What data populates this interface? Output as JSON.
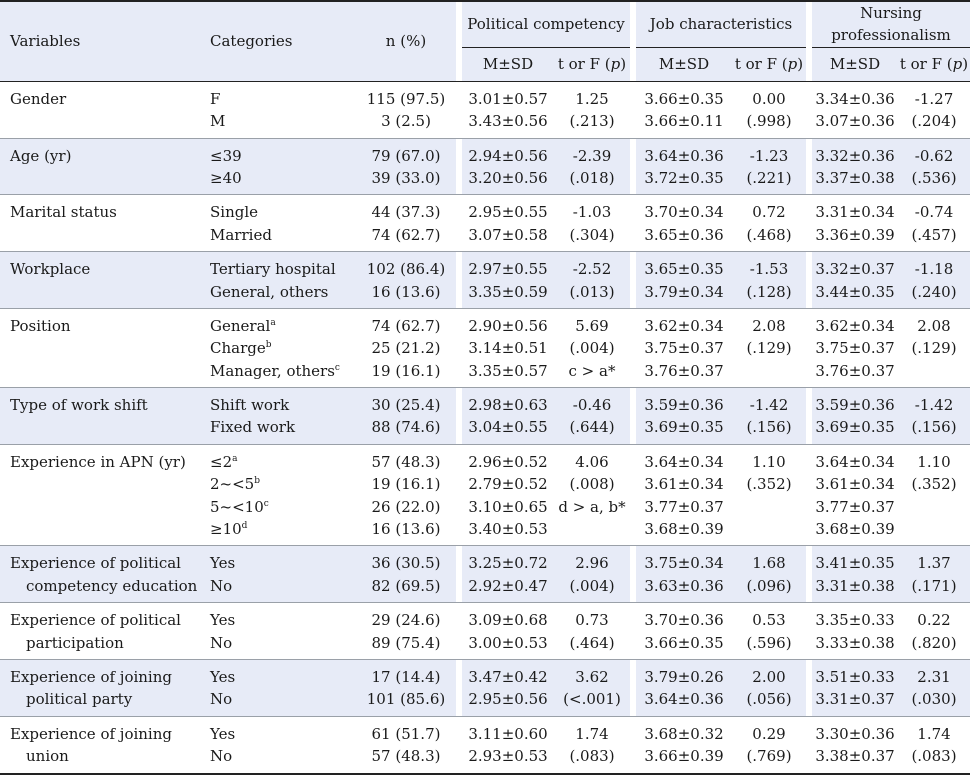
{
  "header": {
    "variables": "Variables",
    "categories": "Categories",
    "n_pct": "n (%)",
    "group1": "Political competency",
    "group2": "Job characteristics",
    "group3_line1": "Nursing",
    "group3_line2": "professionalism",
    "msd": "M±SD",
    "t_or_f": "t or F (p)"
  },
  "rows": [
    {
      "variable": [
        "Gender"
      ],
      "categories": [
        [
          "F",
          ""
        ],
        [
          "M",
          ""
        ]
      ],
      "n": [
        "115 (97.5)",
        "3 (2.5)"
      ],
      "pc_msd": [
        "3.01±0.57",
        "3.43±0.56"
      ],
      "pc_t": [
        "1.25",
        "(.213)"
      ],
      "jc_msd": [
        "3.66±0.35",
        "3.66±0.11"
      ],
      "jc_t": [
        "0.00",
        "(.998)"
      ],
      "np_msd": [
        "3.34±0.36",
        "3.07±0.36"
      ],
      "np_t": [
        "-1.27",
        "(.204)"
      ]
    },
    {
      "variable": [
        "Age (yr)"
      ],
      "categories": [
        [
          "≤39",
          ""
        ],
        [
          "≥40",
          ""
        ]
      ],
      "n": [
        "79 (67.0)",
        "39 (33.0)"
      ],
      "pc_msd": [
        "2.94±0.56",
        "3.20±0.56"
      ],
      "pc_t": [
        "-2.39",
        "(.018)"
      ],
      "jc_msd": [
        "3.64±0.36",
        "3.72±0.35"
      ],
      "jc_t": [
        "-1.23",
        "(.221)"
      ],
      "np_msd": [
        "3.32±0.36",
        "3.37±0.38"
      ],
      "np_t": [
        "-0.62",
        "(.536)"
      ]
    },
    {
      "variable": [
        "Marital status"
      ],
      "categories": [
        [
          "Single",
          ""
        ],
        [
          "Married",
          ""
        ]
      ],
      "n": [
        "44 (37.3)",
        "74 (62.7)"
      ],
      "pc_msd": [
        "2.95±0.55",
        "3.07±0.58"
      ],
      "pc_t": [
        "-1.03",
        "(.304)"
      ],
      "jc_msd": [
        "3.70±0.34",
        "3.65±0.36"
      ],
      "jc_t": [
        "0.72",
        "(.468)"
      ],
      "np_msd": [
        "3.31±0.34",
        "3.36±0.39"
      ],
      "np_t": [
        "-0.74",
        "(.457)"
      ]
    },
    {
      "variable": [
        "Workplace"
      ],
      "categories": [
        [
          "Tertiary hospital",
          ""
        ],
        [
          "General, others",
          ""
        ]
      ],
      "n": [
        "102 (86.4)",
        "16 (13.6)"
      ],
      "pc_msd": [
        "2.97±0.55",
        "3.35±0.59"
      ],
      "pc_t": [
        "-2.52",
        "(.013)"
      ],
      "jc_msd": [
        "3.65±0.35",
        "3.79±0.34"
      ],
      "jc_t": [
        "-1.53",
        "(.128)"
      ],
      "np_msd": [
        "3.32±0.37",
        "3.44±0.35"
      ],
      "np_t": [
        "-1.18",
        "(.240)"
      ]
    },
    {
      "variable": [
        "Position"
      ],
      "categories": [
        [
          "General",
          "a"
        ],
        [
          "Charge",
          "b"
        ],
        [
          "Manager, others",
          "c"
        ]
      ],
      "n": [
        "74 (62.7)",
        "25 (21.2)",
        "19 (16.1)"
      ],
      "pc_msd": [
        "2.90±0.56",
        "3.14±0.51",
        "3.35±0.57"
      ],
      "pc_t": [
        "5.69",
        "(.004)",
        "c > a*"
      ],
      "jc_msd": [
        "3.62±0.34",
        "3.75±0.37",
        "3.76±0.37"
      ],
      "jc_t": [
        "2.08",
        "(.129)"
      ],
      "np_msd": [
        "3.62±0.34",
        "3.75±0.37",
        "3.76±0.37"
      ],
      "np_t": [
        "2.08",
        "(.129)"
      ]
    },
    {
      "variable": [
        "Type of work shift"
      ],
      "categories": [
        [
          "Shift work",
          ""
        ],
        [
          "Fixed work",
          ""
        ]
      ],
      "n": [
        "30 (25.4)",
        "88 (74.6)"
      ],
      "pc_msd": [
        "2.98±0.63",
        "3.04±0.55"
      ],
      "pc_t": [
        "-0.46",
        "(.644)"
      ],
      "jc_msd": [
        "3.59±0.36",
        "3.69±0.35"
      ],
      "jc_t": [
        "-1.42",
        "(.156)"
      ],
      "np_msd": [
        "3.59±0.36",
        "3.69±0.35"
      ],
      "np_t": [
        "-1.42",
        "(.156)"
      ]
    },
    {
      "variable": [
        "Experience in APN (yr)"
      ],
      "categories": [
        [
          "≤2",
          "a"
        ],
        [
          "2~<5",
          "b"
        ],
        [
          "5~<10",
          "c"
        ],
        [
          "≥10",
          "d"
        ]
      ],
      "n": [
        "57 (48.3)",
        "19 (16.1)",
        "26 (22.0)",
        "16 (13.6)"
      ],
      "pc_msd": [
        "2.96±0.52",
        "2.79±0.52",
        "3.10±0.65",
        "3.40±0.53"
      ],
      "pc_t": [
        "4.06",
        "(.008)",
        "d > a, b*"
      ],
      "jc_msd": [
        "3.64±0.34",
        "3.61±0.34",
        "3.77±0.37",
        "3.68±0.39"
      ],
      "jc_t": [
        "1.10",
        "(.352)"
      ],
      "np_msd": [
        "3.64±0.34",
        "3.61±0.34",
        "3.77±0.37",
        "3.68±0.39"
      ],
      "np_t": [
        "1.10",
        "(.352)"
      ]
    },
    {
      "variable": [
        "Experience of political",
        "competency education"
      ],
      "categories": [
        [
          "Yes",
          ""
        ],
        [
          "No",
          ""
        ]
      ],
      "n": [
        "36 (30.5)",
        "82 (69.5)"
      ],
      "pc_msd": [
        "3.25±0.72",
        "2.92±0.47"
      ],
      "pc_t": [
        "2.96",
        "(.004)"
      ],
      "jc_msd": [
        "3.75±0.34",
        "3.63±0.36"
      ],
      "jc_t": [
        "1.68",
        "(.096)"
      ],
      "np_msd": [
        "3.41±0.35",
        "3.31±0.38"
      ],
      "np_t": [
        "1.37",
        "(.171)"
      ]
    },
    {
      "variable": [
        "Experience of political",
        "participation"
      ],
      "categories": [
        [
          "Yes",
          ""
        ],
        [
          "No",
          ""
        ]
      ],
      "n": [
        "29 (24.6)",
        "89 (75.4)"
      ],
      "pc_msd": [
        "3.09±0.68",
        "3.00±0.53"
      ],
      "pc_t": [
        "0.73",
        "(.464)"
      ],
      "jc_msd": [
        "3.70±0.36",
        "3.66±0.35"
      ],
      "jc_t": [
        "0.53",
        "(.596)"
      ],
      "np_msd": [
        "3.35±0.33",
        "3.33±0.38"
      ],
      "np_t": [
        "0.22",
        "(.820)"
      ]
    },
    {
      "variable": [
        "Experience of joining",
        "political party"
      ],
      "categories": [
        [
          "Yes",
          ""
        ],
        [
          "No",
          ""
        ]
      ],
      "n": [
        "17 (14.4)",
        "101 (85.6)"
      ],
      "pc_msd": [
        "3.47±0.42",
        "2.95±0.56"
      ],
      "pc_t": [
        "3.62",
        "(<.001)"
      ],
      "jc_msd": [
        "3.79±0.26",
        "3.64±0.36"
      ],
      "jc_t": [
        "2.00",
        "(.056)"
      ],
      "np_msd": [
        "3.51±0.33",
        "3.31±0.37"
      ],
      "np_t": [
        "2.31",
        "(.030)"
      ]
    },
    {
      "variable": [
        "Experience of joining",
        "union"
      ],
      "categories": [
        [
          "Yes",
          ""
        ],
        [
          "No",
          ""
        ]
      ],
      "n": [
        "61 (51.7)",
        "57 (48.3)"
      ],
      "pc_msd": [
        "3.11±0.60",
        "2.93±0.53"
      ],
      "pc_t": [
        "1.74",
        "(.083)"
      ],
      "jc_msd": [
        "3.68±0.32",
        "3.66±0.39"
      ],
      "jc_t": [
        "0.29",
        "(.769)"
      ],
      "np_msd": [
        "3.30±0.36",
        "3.38±0.37"
      ],
      "np_t": [
        "1.74",
        "(.083)"
      ]
    }
  ]
}
